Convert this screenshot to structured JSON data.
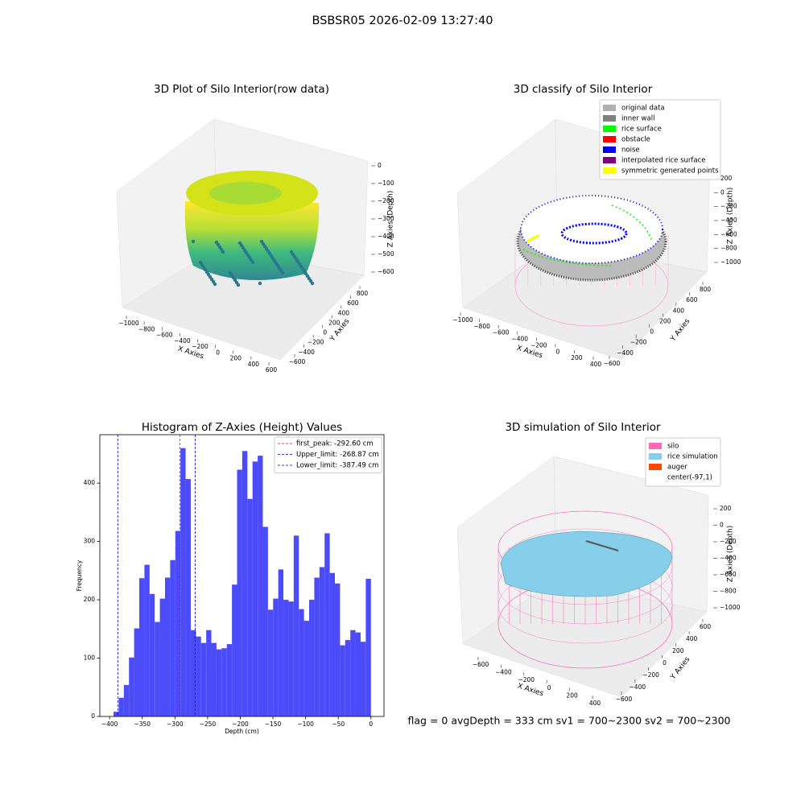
{
  "suptitle": "BSBSR05 2026-02-09 13:27:40",
  "status_line": "flag = 0     avgDepth = 333 cm  sv1 = 700~2300  sv2 = 700~2300",
  "chart_data": [
    {
      "type": "scatter3d",
      "title": "3D Plot of Silo Interior(row data)",
      "xlabel": "X Axies",
      "ylabel": "Y Axies",
      "zlabel": "Z Axies (Depth)",
      "xticks": [
        {
          "value": -1000,
          "label": "−1000"
        },
        {
          "value": -800,
          "label": "−800"
        },
        {
          "value": -600,
          "label": "−600"
        },
        {
          "value": -400,
          "label": "−400"
        },
        {
          "value": -200,
          "label": "−200"
        },
        0,
        200,
        400,
        600
      ],
      "yticks": [
        {
          "value": -600,
          "label": "−600"
        },
        {
          "value": -400,
          "label": "−400"
        },
        {
          "value": -200,
          "label": "−200"
        },
        0,
        200,
        400,
        600,
        800
      ],
      "zticks": [
        0,
        {
          "value": -100,
          "label": "−100"
        },
        {
          "value": -200,
          "label": "−200"
        },
        {
          "value": -300,
          "label": "−300"
        },
        {
          "value": -400,
          "label": "−400"
        },
        {
          "value": -500,
          "label": "−500"
        },
        {
          "value": -600,
          "label": "−600"
        }
      ]
    },
    {
      "type": "classify3d",
      "title": "3D classify of Silo Interior",
      "xlabel": "X Axies",
      "ylabel": "Y Axies",
      "zlabel": "Z Axies (Depth)",
      "xticks": [
        {
          "value": -1000,
          "label": "−1000"
        },
        {
          "value": -800,
          "label": "−800"
        },
        {
          "value": -600,
          "label": "−600"
        },
        {
          "value": -400,
          "label": "−400"
        },
        {
          "value": -200,
          "label": "−200"
        },
        0,
        200,
        400
      ],
      "yticks": [
        {
          "value": -600,
          "label": "−600"
        },
        {
          "value": -400,
          "label": "−400"
        },
        {
          "value": -200,
          "label": "−200"
        },
        0,
        200,
        400,
        600,
        800
      ],
      "zticks": [
        200,
        0,
        {
          "value": -200,
          "label": "−200"
        },
        {
          "value": -400,
          "label": "−400"
        },
        {
          "value": -600,
          "label": "−600"
        },
        {
          "value": -800,
          "label": "−800"
        },
        {
          "value": -1000,
          "label": "−1000"
        }
      ],
      "legend": [
        {
          "name": "original data",
          "color": "#b0b0b0"
        },
        {
          "name": "inner wall",
          "color": "#808080"
        },
        {
          "name": "rice surface",
          "color": "#00ff00"
        },
        {
          "name": "obstacle",
          "color": "#ff0000"
        },
        {
          "name": "noise",
          "color": "#0000ff"
        },
        {
          "name": "interpolated rice surface",
          "color": "#800080"
        },
        {
          "name": "symmetric generated points",
          "color": "#ffff00"
        }
      ]
    },
    {
      "type": "histogram",
      "title": "Histogram of Z-Axies (Height) Values",
      "xlabel": "Depth (cm)",
      "ylabel": "Frequency",
      "color": "#4b4bfa",
      "bins": [
        -394,
        -386.12,
        -378.24,
        -370.36,
        -362.48,
        -354.6,
        -346.72,
        -338.84,
        -330.96,
        -323.08,
        -315.2,
        -307.32,
        -299.44,
        -291.56,
        -283.68,
        -275.8,
        -267.92,
        -260.04,
        -252.16,
        -244.28,
        -236.4,
        -228.52,
        -220.64,
        -212.76,
        -204.88,
        -197,
        -189.12,
        -181.24,
        -173.36,
        -165.48,
        -157.6,
        -149.72,
        -141.84,
        -133.96,
        -126.08,
        -118.2,
        -110.32,
        -102.44,
        -94.56,
        -86.68,
        -78.8,
        -70.92,
        -63.04,
        -55.16,
        -47.28,
        -39.4,
        -31.52,
        -23.64,
        -15.76,
        -7.88,
        0
      ],
      "values": [
        8,
        32,
        54,
        101,
        151,
        237,
        260,
        210,
        162,
        202,
        238,
        268,
        318,
        460,
        407,
        148,
        137,
        126,
        148,
        126,
        115,
        117,
        124,
        226,
        423,
        455,
        373,
        437,
        447,
        325,
        183,
        202,
        252,
        200,
        197,
        310,
        184,
        164,
        200,
        238,
        256,
        314,
        246,
        228,
        122,
        131,
        148,
        144,
        128,
        236
      ],
      "xlim": [
        -415,
        20
      ],
      "ylim": [
        0,
        483
      ],
      "xticks": [
        {
          "value": -400,
          "label": "−400"
        },
        {
          "value": -350,
          "label": "−350"
        },
        {
          "value": -300,
          "label": "−300"
        },
        {
          "value": -250,
          "label": "−250"
        },
        {
          "value": -200,
          "label": "−200"
        },
        {
          "value": -150,
          "label": "−150"
        },
        {
          "value": -100,
          "label": "−100"
        },
        {
          "value": -50,
          "label": "−50"
        },
        0
      ],
      "yticks": [
        0,
        100,
        200,
        300,
        400
      ],
      "vlines": [
        {
          "name": "first_peak: -292.60 cm",
          "value": -292.6,
          "color": "#ff0000"
        },
        {
          "name": "Upper_limit: -268.87 cm",
          "value": -268.87,
          "color": "#0000cc"
        },
        {
          "name": "Lower_limit: -387.49 cm",
          "value": -387.49,
          "color": "#0000cc"
        }
      ]
    },
    {
      "type": "surface3d",
      "title": "3D simulation of Silo Interior",
      "xlabel": "X Axies",
      "ylabel": "Y Axies",
      "zlabel": "Z Axies (Depth)",
      "xticks": [
        {
          "value": -600,
          "label": "−600"
        },
        {
          "value": -400,
          "label": "−400"
        },
        {
          "value": -200,
          "label": "−200"
        },
        0,
        200,
        400
      ],
      "yticks": [
        {
          "value": -600,
          "label": "−600"
        },
        {
          "value": -400,
          "label": "−400"
        },
        {
          "value": -200,
          "label": "−200"
        },
        0,
        200,
        400,
        600
      ],
      "zticks": [
        200,
        0,
        {
          "value": -200,
          "label": "−200"
        },
        {
          "value": -400,
          "label": "−400"
        },
        {
          "value": -600,
          "label": "−600"
        },
        {
          "value": -800,
          "label": "−800"
        },
        {
          "value": -1000,
          "label": "−1000"
        }
      ],
      "legend": [
        {
          "name": "silo",
          "color": "#ff69b4"
        },
        {
          "name": "rice simulation",
          "color": "#87ceeb"
        },
        {
          "name": "auger",
          "color": "#ff4500"
        },
        {
          "name": "center(-97,1)",
          "color": "#ffffff"
        }
      ]
    }
  ]
}
